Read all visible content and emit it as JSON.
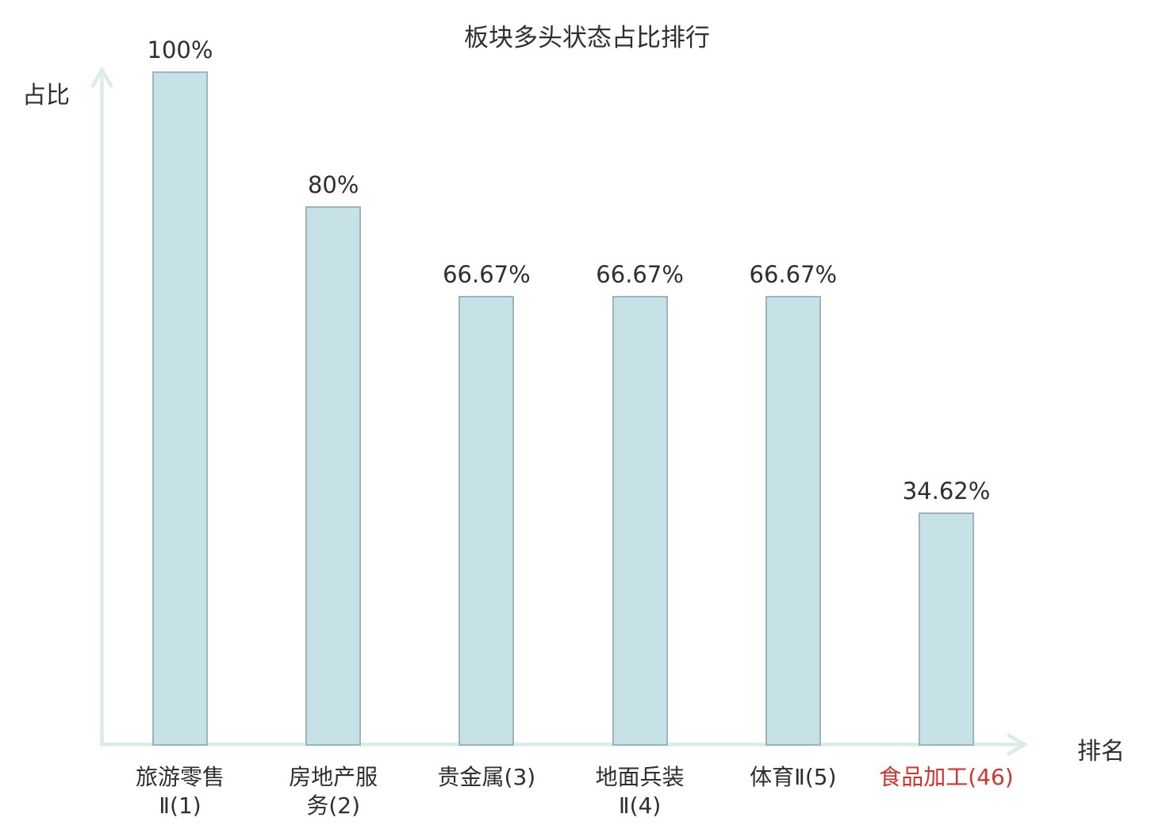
{
  "chart_data": {
    "type": "bar",
    "title": "板块多头状态占比排行",
    "ylabel": "占比",
    "xlabel": "排名",
    "categories": [
      "旅游零售\nⅡ(1)",
      "房地产服\n务(2)",
      "贵金属(3)",
      "地面兵装\nⅡ(4)",
      "体育Ⅱ(5)",
      "食品加工(46)"
    ],
    "values": [
      100,
      80,
      66.67,
      66.67,
      66.67,
      34.62
    ],
    "value_labels": [
      "100%",
      "80%",
      "66.67%",
      "66.67%",
      "66.67%",
      "34.62%"
    ],
    "highlight_index": 5,
    "ylim": [
      0,
      100
    ],
    "grid": false,
    "legend": false,
    "axis_arrows": true,
    "colors": {
      "bar_fill": "#c6e2e6",
      "bar_border": "#9bb5ba",
      "axis": "#daece7",
      "text": "#2f2f2f",
      "highlight_text": "#d5322b"
    }
  }
}
